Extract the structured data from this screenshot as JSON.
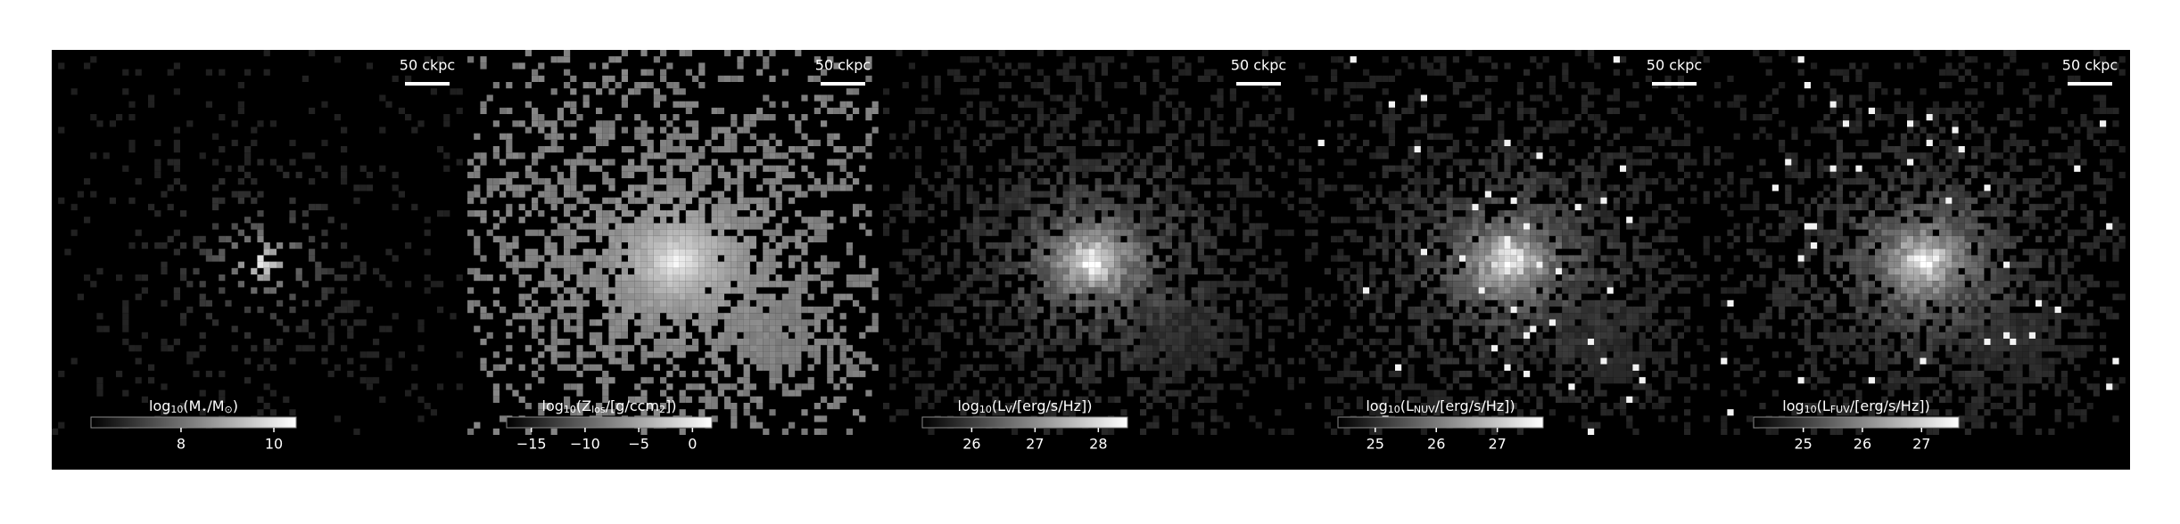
{
  "panels": [
    {
      "scale_label": "50 ckpc",
      "colorbar": {
        "label": [
          "log",
          "10",
          "(M",
          "⋆",
          "/M",
          "⊙",
          ")"
        ],
        "lim": [
          6.06,
          10.48
        ],
        "ticks": [
          8,
          10
        ]
      }
    },
    {
      "scale_label": "50 ckpc",
      "colorbar": {
        "label": [
          "log",
          "10",
          "(Z",
          "los",
          "/[g/ccm",
          "2",
          "])"
        ],
        "lim": [
          -17.3,
          1.8
        ],
        "ticks": [
          -15,
          -10,
          -5,
          0
        ]
      }
    },
    {
      "scale_label": "50 ckpc",
      "colorbar": {
        "label": [
          "log",
          "10",
          "(L",
          "V",
          "/[erg/s/Hz])"
        ],
        "lim": [
          25.22,
          28.46
        ],
        "ticks": [
          26,
          27,
          28
        ]
      }
    },
    {
      "scale_label": "50 ckpc",
      "colorbar": {
        "label": [
          "log",
          "10",
          "(L",
          "NUV",
          "/[erg/s/Hz])"
        ],
        "lim": [
          24.39,
          27.75
        ],
        "ticks": [
          25,
          26,
          27
        ]
      }
    },
    {
      "scale_label": "50 ckpc",
      "colorbar": {
        "label": [
          "log",
          "10",
          "(L",
          "FUV",
          "/[erg/s/Hz])"
        ],
        "lim": [
          24.16,
          27.63
        ],
        "ticks": [
          25,
          26,
          27
        ]
      }
    }
  ]
}
